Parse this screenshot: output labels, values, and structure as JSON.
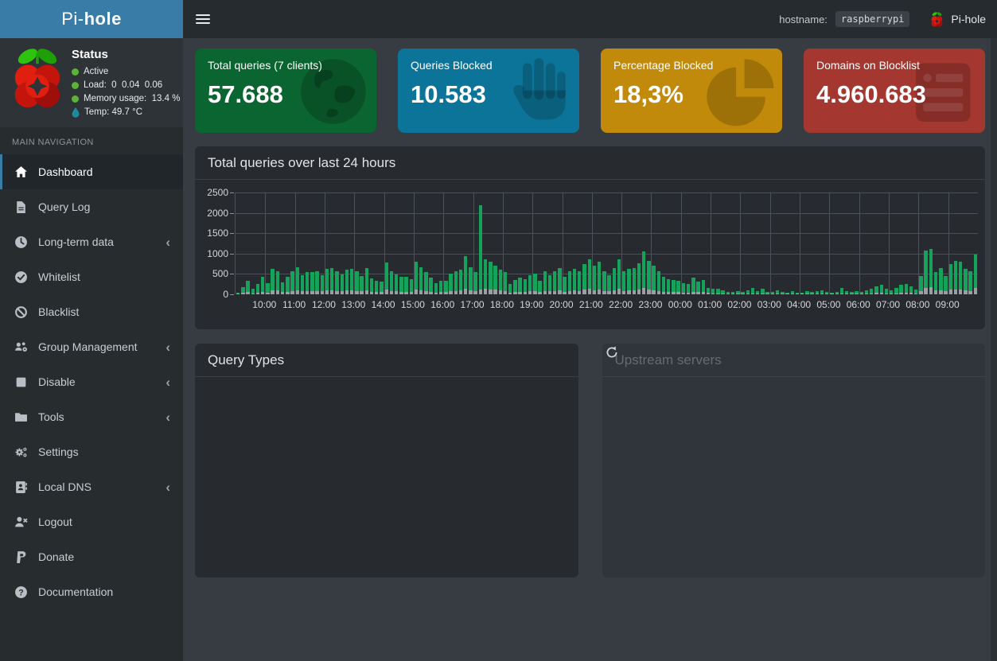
{
  "app": {
    "brand_pi": "Pi-",
    "brand_hole": "hole",
    "hostname_label": "hostname:",
    "hostname_value": "raspberrypi",
    "brand_right": "Pi-hole"
  },
  "status": {
    "title": "Status",
    "items": [
      {
        "icon": "green-dot",
        "text": "Active"
      },
      {
        "icon": "green-dot",
        "text": "Load:  0  0.04  0.06"
      },
      {
        "icon": "green-dot",
        "text": "Memory usage:  13.4 %"
      },
      {
        "icon": "temp",
        "text": "Temp: 49.7 °C"
      }
    ]
  },
  "sidebar": {
    "section": "MAIN NAVIGATION",
    "items": [
      {
        "label": "Dashboard",
        "active": true,
        "has_submenu": false
      },
      {
        "label": "Query Log",
        "active": false,
        "has_submenu": false
      },
      {
        "label": "Long-term data",
        "active": false,
        "has_submenu": true
      },
      {
        "label": "Whitelist",
        "active": false,
        "has_submenu": false
      },
      {
        "label": "Blacklist",
        "active": false,
        "has_submenu": false
      },
      {
        "label": "Group Management",
        "active": false,
        "has_submenu": true
      },
      {
        "label": "Disable",
        "active": false,
        "has_submenu": true
      },
      {
        "label": "Tools",
        "active": false,
        "has_submenu": true
      },
      {
        "label": "Settings",
        "active": false,
        "has_submenu": false
      },
      {
        "label": "Local DNS",
        "active": false,
        "has_submenu": true
      },
      {
        "label": "Logout",
        "active": false,
        "has_submenu": false
      },
      {
        "label": "Donate",
        "active": false,
        "has_submenu": false
      },
      {
        "label": "Documentation",
        "active": false,
        "has_submenu": false
      }
    ]
  },
  "cards": [
    {
      "title": "Total queries (7 clients)",
      "value": "57.688",
      "bg": "#0b6530",
      "icon": "globe"
    },
    {
      "title": "Queries Blocked",
      "value": "10.583",
      "bg": "#0c7498",
      "icon": "hand"
    },
    {
      "title": "Percentage Blocked",
      "value": "18,3%",
      "bg": "#c18a0a",
      "icon": "pie"
    },
    {
      "title": "Domains on Blocklist",
      "value": "4.960.683",
      "bg": "#a43830",
      "icon": "list"
    }
  ],
  "chart_data": {
    "type": "bar",
    "stacked": true,
    "title": "Total queries over last 24 hours",
    "ylabel": "",
    "xlabel": "",
    "ylim": [
      0,
      2500
    ],
    "yticks": [
      0,
      500,
      1000,
      1500,
      2000,
      2500
    ],
    "slot_minutes": 10,
    "hour_labels": [
      "10:00",
      "11:00",
      "12:00",
      "13:00",
      "14:00",
      "15:00",
      "16:00",
      "17:00",
      "18:00",
      "19:00",
      "20:00",
      "21:00",
      "22:00",
      "23:00",
      "00:00",
      "01:00",
      "02:00",
      "03:00",
      "04:00",
      "05:00",
      "06:00",
      "07:00",
      "08:00",
      "09:00"
    ],
    "series_legend": [
      {
        "name": "total",
        "color": "#15a35c"
      },
      {
        "name": "blocked",
        "color": "#9b9fa3"
      }
    ],
    "grid_color": "#4b5156",
    "bars_total_blocked": [
      [
        40,
        10
      ],
      [
        180,
        30
      ],
      [
        330,
        50
      ],
      [
        130,
        20
      ],
      [
        260,
        40
      ],
      [
        430,
        60
      ],
      [
        270,
        40
      ],
      [
        620,
        90
      ],
      [
        570,
        90
      ],
      [
        300,
        50
      ],
      [
        430,
        60
      ],
      [
        560,
        80
      ],
      [
        660,
        100
      ],
      [
        470,
        70
      ],
      [
        540,
        80
      ],
      [
        540,
        80
      ],
      [
        560,
        80
      ],
      [
        470,
        70
      ],
      [
        620,
        90
      ],
      [
        650,
        100
      ],
      [
        560,
        80
      ],
      [
        480,
        70
      ],
      [
        600,
        90
      ],
      [
        620,
        90
      ],
      [
        560,
        80
      ],
      [
        440,
        70
      ],
      [
        650,
        100
      ],
      [
        400,
        60
      ],
      [
        340,
        50
      ],
      [
        310,
        50
      ],
      [
        780,
        120
      ],
      [
        560,
        80
      ],
      [
        490,
        70
      ],
      [
        430,
        60
      ],
      [
        430,
        60
      ],
      [
        380,
        60
      ],
      [
        810,
        120
      ],
      [
        660,
        100
      ],
      [
        540,
        80
      ],
      [
        410,
        60
      ],
      [
        280,
        40
      ],
      [
        330,
        50
      ],
      [
        330,
        50
      ],
      [
        500,
        80
      ],
      [
        560,
        80
      ],
      [
        600,
        90
      ],
      [
        930,
        140
      ],
      [
        660,
        100
      ],
      [
        540,
        80
      ],
      [
        2190,
        120
      ],
      [
        850,
        130
      ],
      [
        800,
        120
      ],
      [
        700,
        110
      ],
      [
        600,
        90
      ],
      [
        550,
        80
      ],
      [
        260,
        40
      ],
      [
        350,
        50
      ],
      [
        420,
        60
      ],
      [
        380,
        60
      ],
      [
        470,
        70
      ],
      [
        500,
        80
      ],
      [
        330,
        50
      ],
      [
        560,
        80
      ],
      [
        460,
        70
      ],
      [
        560,
        80
      ],
      [
        650,
        100
      ],
      [
        430,
        60
      ],
      [
        560,
        80
      ],
      [
        620,
        90
      ],
      [
        560,
        80
      ],
      [
        750,
        110
      ],
      [
        850,
        130
      ],
      [
        700,
        100
      ],
      [
        800,
        120
      ],
      [
        560,
        80
      ],
      [
        460,
        70
      ],
      [
        650,
        100
      ],
      [
        860,
        130
      ],
      [
        560,
        80
      ],
      [
        620,
        90
      ],
      [
        650,
        100
      ],
      [
        760,
        110
      ],
      [
        1060,
        160
      ],
      [
        820,
        120
      ],
      [
        700,
        100
      ],
      [
        560,
        80
      ],
      [
        430,
        60
      ],
      [
        380,
        60
      ],
      [
        350,
        50
      ],
      [
        330,
        50
      ],
      [
        280,
        40
      ],
      [
        250,
        40
      ],
      [
        420,
        60
      ],
      [
        310,
        50
      ],
      [
        360,
        50
      ],
      [
        160,
        30
      ],
      [
        130,
        20
      ],
      [
        140,
        20
      ],
      [
        90,
        10
      ],
      [
        60,
        10
      ],
      [
        50,
        10
      ],
      [
        70,
        10
      ],
      [
        60,
        10
      ],
      [
        100,
        20
      ],
      [
        150,
        20
      ],
      [
        80,
        10
      ],
      [
        130,
        20
      ],
      [
        60,
        10
      ],
      [
        60,
        10
      ],
      [
        90,
        10
      ],
      [
        60,
        10
      ],
      [
        40,
        10
      ],
      [
        80,
        10
      ],
      [
        30,
        10
      ],
      [
        40,
        10
      ],
      [
        70,
        10
      ],
      [
        60,
        10
      ],
      [
        70,
        10
      ],
      [
        90,
        10
      ],
      [
        50,
        10
      ],
      [
        30,
        10
      ],
      [
        60,
        10
      ],
      [
        150,
        20
      ],
      [
        80,
        10
      ],
      [
        60,
        10
      ],
      [
        70,
        10
      ],
      [
        60,
        10
      ],
      [
        90,
        10
      ],
      [
        130,
        20
      ],
      [
        200,
        30
      ],
      [
        230,
        40
      ],
      [
        130,
        20
      ],
      [
        90,
        10
      ],
      [
        160,
        20
      ],
      [
        230,
        40
      ],
      [
        250,
        40
      ],
      [
        200,
        30
      ],
      [
        120,
        20
      ],
      [
        450,
        70
      ],
      [
        1080,
        160
      ],
      [
        1120,
        170
      ],
      [
        550,
        90
      ],
      [
        650,
        100
      ],
      [
        450,
        70
      ],
      [
        750,
        110
      ],
      [
        820,
        120
      ],
      [
        800,
        120
      ],
      [
        620,
        90
      ],
      [
        560,
        80
      ],
      [
        980,
        150
      ]
    ]
  },
  "panels": {
    "query_types": {
      "title": "Query Types"
    },
    "upstream_servers": {
      "title": "Upstream servers",
      "loading": true
    }
  }
}
